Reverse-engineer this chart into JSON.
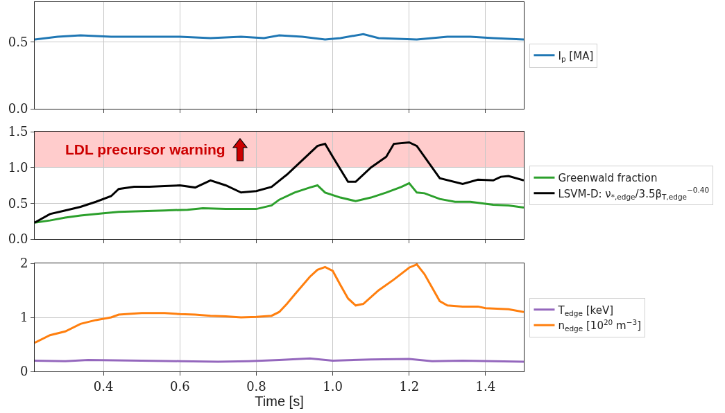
{
  "chart_data": [
    {
      "type": "line",
      "xlim": [
        0.22,
        1.5
      ],
      "xticks": [
        {
          "value": 0.4,
          "label": null
        },
        {
          "value": 0.6,
          "label": null
        },
        {
          "value": 0.8,
          "label": null
        },
        {
          "value": 1.0,
          "label": null
        },
        {
          "value": 1.2,
          "label": null
        },
        {
          "value": 1.4,
          "label": null
        }
      ],
      "ylim": [
        0,
        0.8
      ],
      "yticks": [
        {
          "value": 0,
          "label": "0.0"
        },
        {
          "value": 0.5,
          "label": "0.5"
        }
      ],
      "grid": true,
      "legend": "right",
      "tick_labels": "y",
      "series": [
        {
          "name": "I$_{p}$ [MA]",
          "color": "#1f77b4",
          "x": [
            0.22,
            0.28,
            0.34,
            0.42,
            0.5,
            0.6,
            0.68,
            0.76,
            0.82,
            0.86,
            0.92,
            0.98,
            1.02,
            1.08,
            1.12,
            1.22,
            1.3,
            1.36,
            1.42,
            1.5
          ],
          "values": [
            0.52,
            0.54,
            0.55,
            0.54,
            0.54,
            0.54,
            0.53,
            0.54,
            0.53,
            0.55,
            0.54,
            0.52,
            0.53,
            0.56,
            0.53,
            0.52,
            0.54,
            0.54,
            0.53,
            0.52
          ]
        }
      ]
    },
    {
      "type": "line",
      "xlim": [
        0.22,
        1.5
      ],
      "xticks": [
        {
          "value": 0.4,
          "label": null
        },
        {
          "value": 0.6,
          "label": null
        },
        {
          "value": 0.8,
          "label": null
        },
        {
          "value": 1.0,
          "label": null
        },
        {
          "value": 1.2,
          "label": null
        },
        {
          "value": 1.4,
          "label": null
        }
      ],
      "ylim": [
        0,
        1.5
      ],
      "yticks": [
        {
          "value": 0,
          "label": "0.0"
        },
        {
          "value": 0.5,
          "label": "0.5"
        },
        {
          "value": 1.0,
          "label": "1.0"
        },
        {
          "value": 1.5,
          "label": "1.5"
        }
      ],
      "grid": true,
      "legend": "right",
      "tick_labels": "y",
      "bands": [
        {
          "axis": "y",
          "from": 1.0,
          "to": 1.5,
          "label": "LDL precursor warning",
          "color": "#ffcccc"
        }
      ],
      "series": [
        {
          "name": "Greenwald fraction",
          "color": "#2ca02c",
          "x": [
            0.22,
            0.26,
            0.3,
            0.34,
            0.4,
            0.44,
            0.5,
            0.56,
            0.62,
            0.66,
            0.72,
            0.8,
            0.84,
            0.86,
            0.9,
            0.94,
            0.96,
            0.98,
            1.02,
            1.06,
            1.1,
            1.14,
            1.18,
            1.2,
            1.22,
            1.24,
            1.28,
            1.32,
            1.36,
            1.42,
            1.46,
            1.5
          ],
          "values": [
            0.23,
            0.26,
            0.3,
            0.33,
            0.36,
            0.38,
            0.39,
            0.4,
            0.41,
            0.43,
            0.42,
            0.42,
            0.47,
            0.55,
            0.65,
            0.72,
            0.75,
            0.65,
            0.58,
            0.53,
            0.58,
            0.65,
            0.73,
            0.78,
            0.65,
            0.64,
            0.56,
            0.52,
            0.52,
            0.48,
            0.47,
            0.44
          ]
        },
        {
          "name": "LSVM-D: ν$_{*,edge}$/3.5β$_{T,edge}$$^{−0.40}$",
          "color": "#000000",
          "x": [
            0.22,
            0.26,
            0.3,
            0.34,
            0.38,
            0.42,
            0.44,
            0.48,
            0.52,
            0.56,
            0.6,
            0.64,
            0.68,
            0.72,
            0.76,
            0.8,
            0.84,
            0.88,
            0.92,
            0.96,
            0.98,
            1.0,
            1.04,
            1.06,
            1.1,
            1.14,
            1.16,
            1.2,
            1.22,
            1.28,
            1.34,
            1.38,
            1.42,
            1.44,
            1.46,
            1.5
          ],
          "values": [
            0.23,
            0.35,
            0.4,
            0.45,
            0.52,
            0.6,
            0.7,
            0.73,
            0.73,
            0.74,
            0.75,
            0.72,
            0.82,
            0.75,
            0.65,
            0.67,
            0.73,
            0.9,
            1.1,
            1.3,
            1.33,
            1.15,
            0.8,
            0.8,
            1.0,
            1.15,
            1.33,
            1.35,
            1.3,
            0.85,
            0.77,
            0.83,
            0.82,
            0.87,
            0.88,
            0.82
          ]
        }
      ]
    },
    {
      "type": "line",
      "xlim": [
        0.22,
        1.5
      ],
      "xticks": [
        {
          "value": 0.4,
          "label": "0.4"
        },
        {
          "value": 0.6,
          "label": "0.6"
        },
        {
          "value": 0.8,
          "label": "0.8"
        },
        {
          "value": 1.0,
          "label": "1.0"
        },
        {
          "value": 1.2,
          "label": "1.2"
        },
        {
          "value": 1.4,
          "label": "1.4"
        }
      ],
      "ylim": [
        0,
        2
      ],
      "yticks": [
        0,
        1,
        2
      ],
      "grid": true,
      "legend": "right",
      "xlabel": "Time [s]",
      "series": [
        {
          "name": "T$_{edge}$ [keV]",
          "color": "#9467bd",
          "x": [
            0.22,
            0.3,
            0.36,
            0.5,
            0.6,
            0.7,
            0.78,
            0.86,
            0.94,
            1.0,
            1.1,
            1.2,
            1.26,
            1.34,
            1.5
          ],
          "values": [
            0.2,
            0.19,
            0.21,
            0.2,
            0.19,
            0.18,
            0.19,
            0.21,
            0.24,
            0.2,
            0.22,
            0.23,
            0.19,
            0.2,
            0.18
          ]
        },
        {
          "name": "n$_{edge}$ [10$^{20}$ m$^{−3}$]",
          "color": "#ff7f0e",
          "x": [
            0.22,
            0.26,
            0.3,
            0.34,
            0.38,
            0.42,
            0.44,
            0.5,
            0.56,
            0.6,
            0.64,
            0.68,
            0.72,
            0.76,
            0.8,
            0.84,
            0.86,
            0.88,
            0.9,
            0.94,
            0.96,
            0.98,
            1.0,
            1.02,
            1.04,
            1.06,
            1.08,
            1.12,
            1.16,
            1.2,
            1.22,
            1.24,
            1.26,
            1.28,
            1.3,
            1.34,
            1.38,
            1.4,
            1.46,
            1.5
          ],
          "values": [
            0.53,
            0.67,
            0.74,
            0.88,
            0.95,
            1.0,
            1.05,
            1.08,
            1.08,
            1.06,
            1.05,
            1.03,
            1.02,
            1.0,
            1.01,
            1.03,
            1.1,
            1.25,
            1.42,
            1.75,
            1.88,
            1.93,
            1.86,
            1.6,
            1.35,
            1.22,
            1.25,
            1.5,
            1.7,
            1.92,
            1.98,
            1.8,
            1.55,
            1.3,
            1.22,
            1.2,
            1.2,
            1.17,
            1.15,
            1.1
          ]
        }
      ]
    }
  ]
}
